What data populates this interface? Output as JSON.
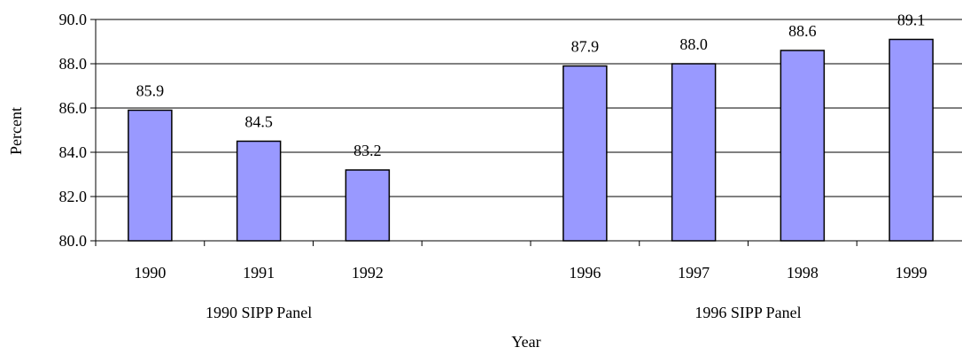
{
  "chart_data": {
    "type": "bar",
    "categories": [
      "1990",
      "1991",
      "1992",
      "",
      "1996",
      "1997",
      "1998",
      "1999"
    ],
    "values": [
      85.9,
      84.5,
      83.2,
      null,
      87.9,
      88.0,
      88.6,
      89.1
    ],
    "value_labels": [
      "85.9",
      "84.5",
      "83.2",
      "",
      "87.9",
      "88.0",
      "88.6",
      "89.1"
    ],
    "y_ticks": [
      "80.0",
      "82.0",
      "84.0",
      "86.0",
      "88.0",
      "90.0"
    ],
    "ylim": [
      80,
      90
    ],
    "xlabel": "Year",
    "ylabel": "Percent",
    "groups": [
      {
        "label": "1990 SIPP Panel",
        "categories": [
          "1990",
          "1991",
          "1992"
        ]
      },
      {
        "label": "1996 SIPP Panel",
        "categories": [
          "1996",
          "1997",
          "1998",
          "1999"
        ]
      }
    ],
    "grid": true,
    "colors": {
      "bar": "#9999ff",
      "bar_outline": "#000000",
      "grid": "#000000"
    }
  }
}
